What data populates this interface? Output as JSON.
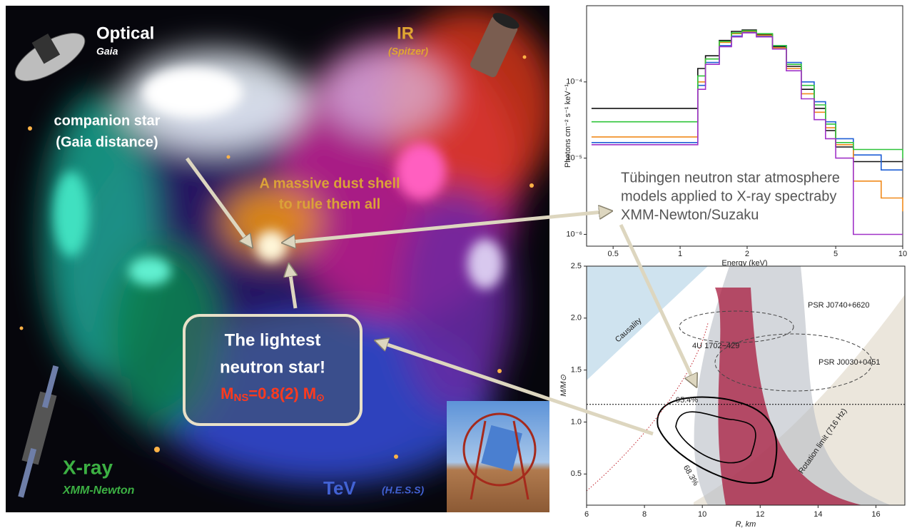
{
  "nebula": {
    "optical": "Optical",
    "optical_mission": "Gaia",
    "ir": "IR",
    "ir_mission": "(Spitzer)",
    "companion": [
      "companion star",
      "(Gaia distance)"
    ],
    "dust_shell": [
      "A massive dust shell",
      "to rule them all"
    ],
    "highlight": [
      "The lightest",
      "neutron star!"
    ],
    "mass": {
      "symbol": "M",
      "subscript": "NS",
      "value": "=0.8(2) M",
      "sun": "⊙"
    },
    "xray": "X-ray",
    "xray_mission": "XMM-Newton",
    "tev": "TeV",
    "tev_mission": "(H.E.S.S)"
  },
  "callout": [
    "Tübingen neutron star atmosphere",
    "models applied to X-ray spectraby",
    "XMM-Newton/Suzaku"
  ],
  "chart_data": [
    {
      "type": "line",
      "xlabel": "Energy (keV)",
      "ylabel": "Photons cm⁻² s⁻¹ keV⁻¹",
      "log_x": true,
      "log_y": true,
      "xlim": [
        0.38,
        10
      ],
      "ylim": [
        7e-07,
        0.001
      ],
      "xticks": [
        0.5,
        1,
        2,
        5,
        10
      ],
      "yticks": [
        {
          "value": 1e-06,
          "label": "10⁻⁶"
        },
        {
          "value": 1e-05,
          "label": "10⁻⁵"
        },
        {
          "value": 0.0001,
          "label": "10⁻⁴"
        }
      ],
      "x": [
        0.4,
        0.6,
        0.8,
        1.1,
        1.2,
        1.3,
        1.5,
        1.7,
        1.9,
        2.2,
        2.6,
        3.0,
        3.5,
        4.0,
        4.5,
        5.0,
        6.0,
        8.0,
        10
      ],
      "series": [
        {
          "color": "#111111",
          "values": [
            4.5e-05,
            4.5e-05,
            4.5e-05,
            4.5e-05,
            0.00015,
            0.00022,
            0.00035,
            0.00046,
            0.00048,
            0.00042,
            0.00029,
            0.00016,
            8e-05,
            4.5e-05,
            2.3e-05,
            1.4e-05,
            9e-06,
            9e-06,
            9e-06
          ]
        },
        {
          "color": "#1f5fd6",
          "values": [
            1.6e-05,
            1.6e-05,
            1.6e-05,
            1.6e-05,
            9e-05,
            0.00018,
            0.0003,
            0.0004,
            0.00045,
            0.0004,
            0.0003,
            0.00018,
            0.0001,
            5.5e-05,
            3e-05,
            1.8e-05,
            1.1e-05,
            7e-06,
            7e-06
          ]
        },
        {
          "color": "#f08a1c",
          "values": [
            1.9e-05,
            1.9e-05,
            1.9e-05,
            1.9e-05,
            0.0001,
            0.0002,
            0.00033,
            0.00043,
            0.00046,
            0.00041,
            0.00028,
            0.00015,
            7e-05,
            4e-05,
            2.5e-05,
            1.5e-05,
            5e-06,
            3e-06,
            2e-06
          ]
        },
        {
          "color": "#2fc43a",
          "values": [
            3e-05,
            3e-05,
            3e-05,
            3e-05,
            0.00012,
            0.0002,
            0.00034,
            0.00044,
            0.00047,
            0.00043,
            0.0003,
            0.00017,
            9e-05,
            5e-05,
            2.8e-05,
            1.6e-05,
            1.3e-05,
            1.3e-05,
            1e-05
          ]
        },
        {
          "color": "#a033c8",
          "values": [
            1.5e-05,
            1.5e-05,
            1.5e-05,
            1.5e-05,
            8e-05,
            0.00017,
            0.00029,
            0.00039,
            0.00044,
            0.00039,
            0.00027,
            0.00014,
            6e-05,
            3.2e-05,
            1.8e-05,
            1e-05,
            1e-06,
            1e-06,
            1e-06
          ]
        }
      ]
    },
    {
      "type": "mass-radius",
      "xlabel": "R, km",
      "ylabel": "M/M⊙",
      "xlim": [
        6,
        17
      ],
      "ylim": [
        0.2,
        2.5
      ],
      "xticks": [
        6,
        8,
        10,
        12,
        14,
        16
      ],
      "yticks": [
        0.5,
        {
          "value": 1,
          "label": "1.0"
        },
        1.5,
        {
          "value": 2,
          "label": "2.0"
        },
        2.5
      ],
      "hline": 1.17,
      "annotations": {
        "causality": "Causality",
        "psr_j0740": "PSR J0740+6620",
        "source_4u": "4U 1702−429",
        "psr_j0030": "PSR J0030+0451",
        "rotation": "Rotation limit (716 Hz)",
        "level_95": "95.4%",
        "level_68": "68.3%"
      }
    }
  ]
}
